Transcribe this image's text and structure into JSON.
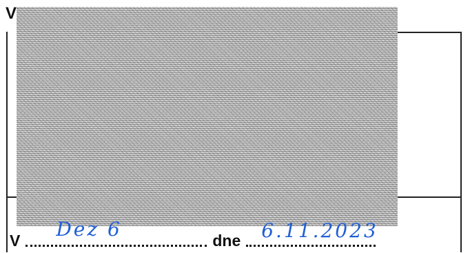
{
  "form": {
    "top_label": "V",
    "place_label": "V",
    "date_label": "dne",
    "place_handwritten": "Dez 6",
    "date_handwritten": "6.11.2023"
  },
  "colors": {
    "ink": "#111111",
    "handwriting": "#1f5fd6",
    "obscured_area": "#bdbdbd"
  }
}
